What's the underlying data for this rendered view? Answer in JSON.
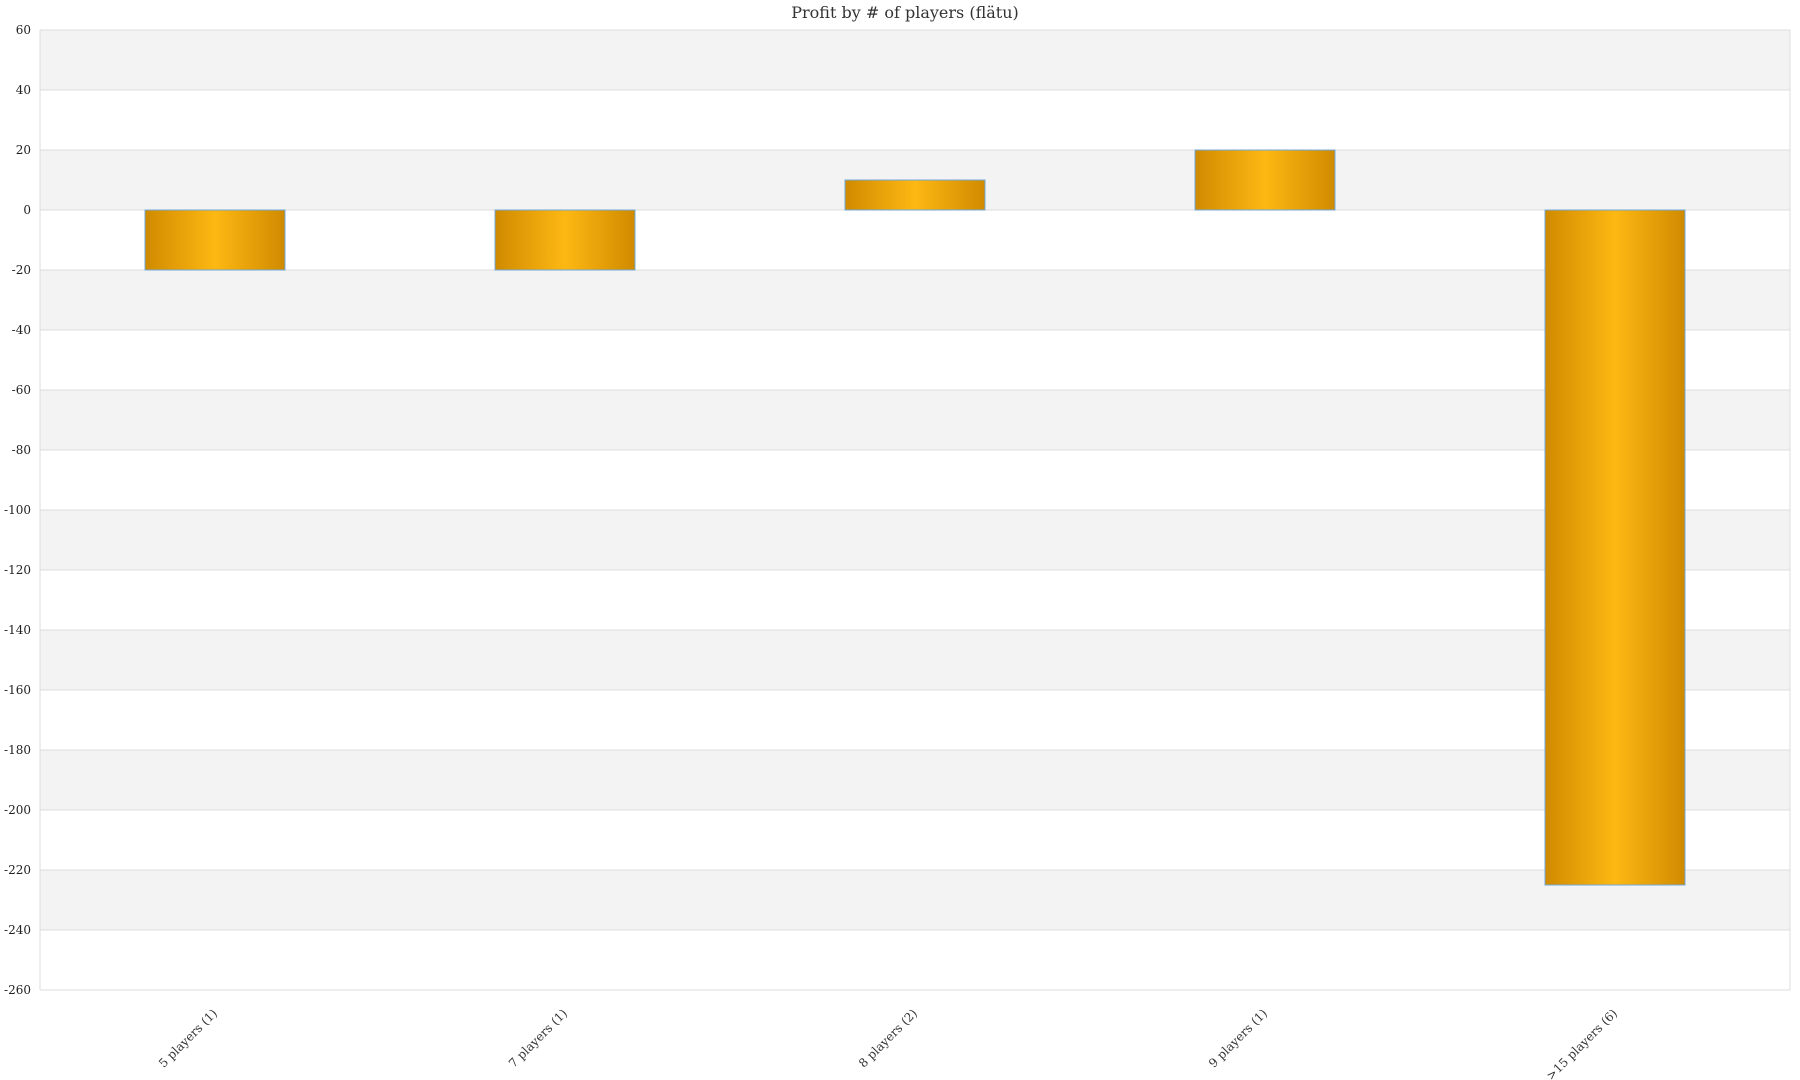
{
  "chart_data": {
    "type": "bar",
    "title": "Profit by # of players  (flätu)",
    "xlabel": "",
    "ylabel": "",
    "categories": [
      "5 players (1)",
      "7 players (1)",
      "8 players (2)",
      "9 players (1)",
      ">15 players (6)"
    ],
    "values": [
      -20,
      -20,
      10,
      20,
      -225
    ],
    "ylim": [
      -260,
      60
    ],
    "yticks": [
      60,
      40,
      20,
      0,
      -20,
      -40,
      -60,
      -80,
      -100,
      -120,
      -140,
      -160,
      -180,
      -200,
      -220,
      -240,
      -260
    ],
    "grid": true,
    "alternating_bands": true,
    "legend": "none",
    "colors": {
      "bar_center": "#fdb813",
      "bar_edge": "#d08a00",
      "bar_border": "#6fa8dc",
      "band": "#f3f3f3",
      "grid": "#dddddd"
    }
  }
}
